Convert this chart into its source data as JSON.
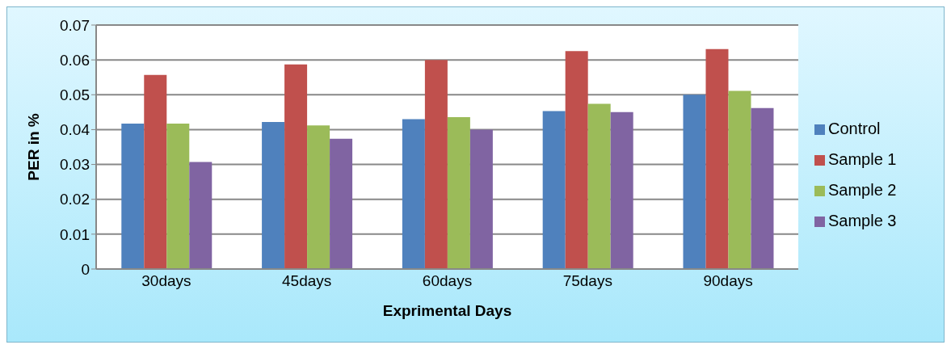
{
  "chart_data": {
    "type": "bar",
    "xlabel": "Exprimental Days",
    "ylabel": "PER in %",
    "categories": [
      "30days",
      "45days",
      "60days",
      "75days",
      "90days"
    ],
    "series": [
      {
        "name": "Control",
        "color": "#4f81bd",
        "values": [
          0.0417,
          0.0422,
          0.043,
          0.0453,
          0.05
        ]
      },
      {
        "name": "Sample 1",
        "color": "#c0504d",
        "values": [
          0.0557,
          0.0587,
          0.06,
          0.0625,
          0.0631
        ]
      },
      {
        "name": "Sample 2",
        "color": "#9bbb59",
        "values": [
          0.0417,
          0.0412,
          0.0436,
          0.0474,
          0.0511
        ]
      },
      {
        "name": "Sample 3",
        "color": "#8064a2",
        "values": [
          0.0307,
          0.0374,
          0.04,
          0.045,
          0.0462
        ]
      }
    ],
    "ylim": [
      0,
      0.07
    ],
    "yticks": [
      0,
      0.01,
      0.02,
      0.03,
      0.04,
      0.05,
      0.06,
      0.07
    ],
    "grid": "y",
    "legend": "right"
  }
}
